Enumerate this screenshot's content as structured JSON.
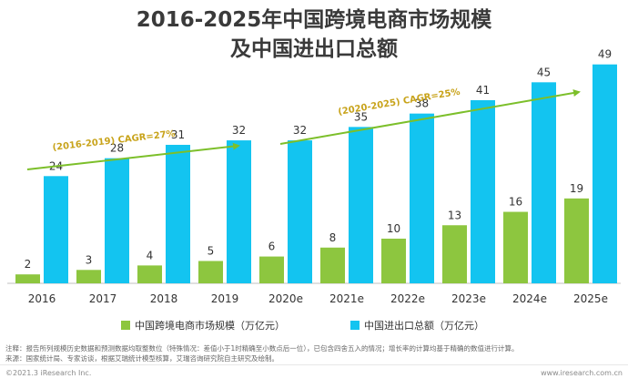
{
  "title_line1": "2016-2025年中国跨境电商市场规模",
  "title_line2": "及中国进出口总额",
  "colors": {
    "green": "#8dc63f",
    "cyan": "#13c4f0",
    "arrow": "#7cbf2a",
    "cagr_text": "#c8a31a"
  },
  "chart_data": {
    "type": "bar",
    "categories": [
      "2016",
      "2017",
      "2018",
      "2019",
      "2020e",
      "2021e",
      "2022e",
      "2023e",
      "2024e",
      "2025e"
    ],
    "series": [
      {
        "name": "中国跨境电商市场规模（万亿元）",
        "values": [
          2,
          3,
          4,
          5,
          6,
          8,
          10,
          13,
          16,
          19
        ],
        "color": "#8dc63f"
      },
      {
        "name": "中国进出口总额（万亿元）",
        "values": [
          24,
          28,
          31,
          32,
          32,
          35,
          38,
          41,
          45,
          49
        ],
        "color": "#13c4f0"
      }
    ],
    "ylim": [
      0,
      52
    ],
    "annotations": [
      {
        "text": "(2016-2019)  CAGR=27%"
      },
      {
        "text": "(2020-2025)  CAGR=25%"
      }
    ],
    "legend_position": "bottom"
  },
  "notes": {
    "line1": "注释：报告所列规模历史数据和预测数据均取整数位（特殊情况：差值小于1时精确至小数点后一位），已包含四舍五入的情况；增长率的计算均基于精确的数值进行计算。",
    "line2": "来源：国家统计局、专家访谈，根据艾瑞统计模型核算，艾瑞咨询研究院自主研究及绘制。"
  },
  "footer": {
    "copyright": "©2021.3 iResearch Inc.",
    "website": "www.iresearch.com.cn"
  }
}
